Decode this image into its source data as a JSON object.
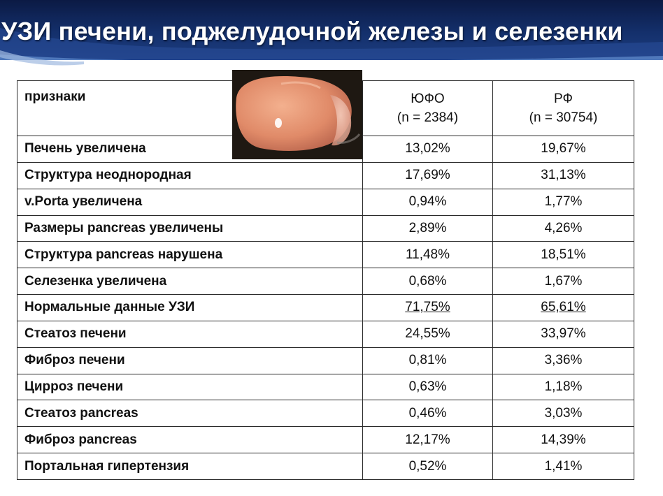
{
  "title": "УЗИ печени, поджелудочной железы и селезенки",
  "table": {
    "header": {
      "label": "признаки",
      "col1_name": "ЮФО",
      "col1_n": "(n = 2384)",
      "col2_name": "РФ",
      "col2_n": "(n = 30754)"
    },
    "rows": [
      {
        "label": "Печень увеличена",
        "v1": "13,02%",
        "v2": "19,67%"
      },
      {
        "label": "Структура неоднородная",
        "v1": "17,69%",
        "v2": "31,13%"
      },
      {
        "label": "v.Porta увеличена",
        "v1": "0,94%",
        "v2": "1,77%"
      },
      {
        "label": "Размеры pancreas увеличены",
        "v1": "2,89%",
        "v2": "4,26%"
      },
      {
        "label": "Структура pancreas нарушена",
        "v1": "11,48%",
        "v2": "18,51%"
      },
      {
        "label": "Селезенка увеличена",
        "v1": "0,68%",
        "v2": "1,67%"
      },
      {
        "label": "Нормальные данные УЗИ",
        "v1": "71,75%",
        "v2": "65,61%"
      },
      {
        "label": "Стеатоз печени",
        "v1": "24,55%",
        "v2": "33,97%"
      },
      {
        "label": "Фиброз печени",
        "v1": "0,81%",
        "v2": "3,36%"
      },
      {
        "label": "Цирроз печени",
        "v1": "0,63%",
        "v2": "1,18%"
      },
      {
        "label": "Стеатоз pancreas",
        "v1": "0,46%",
        "v2": "3,03%"
      },
      {
        "label": "Фиброз pancreas",
        "v1": "12,17%",
        "v2": "14,39%"
      },
      {
        "label": "Портальная гипертензия",
        "v1": "0,52%",
        "v2": "1,41%"
      }
    ]
  },
  "colors": {
    "header_bg": "#14306c",
    "highlight_red": "#c0202a",
    "highlight_blue": "#1a1a7a"
  },
  "image": {
    "icon": "liver-photo"
  }
}
